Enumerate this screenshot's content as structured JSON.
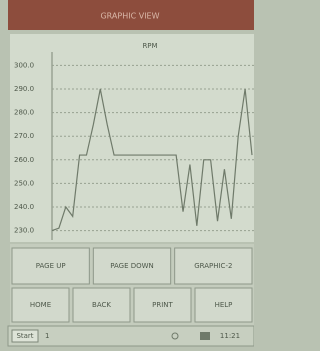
{
  "title_bar": "GRAPHIC VIEW",
  "chart_data": {
    "type": "line",
    "title": "RPM",
    "values": [
      230,
      231,
      240,
      236,
      262,
      262,
      275,
      290,
      275,
      262,
      262,
      262,
      262,
      262,
      262,
      262,
      262,
      262,
      262,
      238,
      258,
      232,
      260,
      260,
      234,
      256,
      235,
      270,
      290,
      262
    ],
    "color": "#6f7a6a",
    "ylim": [
      226,
      304
    ],
    "yticks": [
      {
        "value": 230,
        "label": "230.0"
      },
      {
        "value": 240,
        "label": "240.0"
      },
      {
        "value": 250,
        "label": "250.0"
      },
      {
        "value": 260,
        "label": "260.0"
      },
      {
        "value": 270,
        "label": "270.0"
      },
      {
        "value": 280,
        "label": "280.0"
      },
      {
        "value": 290,
        "label": "290.0"
      },
      {
        "value": 300,
        "label": "300.0"
      }
    ],
    "grid": true
  },
  "buttons_row1": [
    "PAGE UP",
    "PAGE DOWN",
    "GRAPHIC-2"
  ],
  "buttons_row2": [
    "HOME",
    "BACK",
    "PRINT",
    "HELP"
  ],
  "status": {
    "start": "Start",
    "count": "1",
    "time": "11:21"
  }
}
